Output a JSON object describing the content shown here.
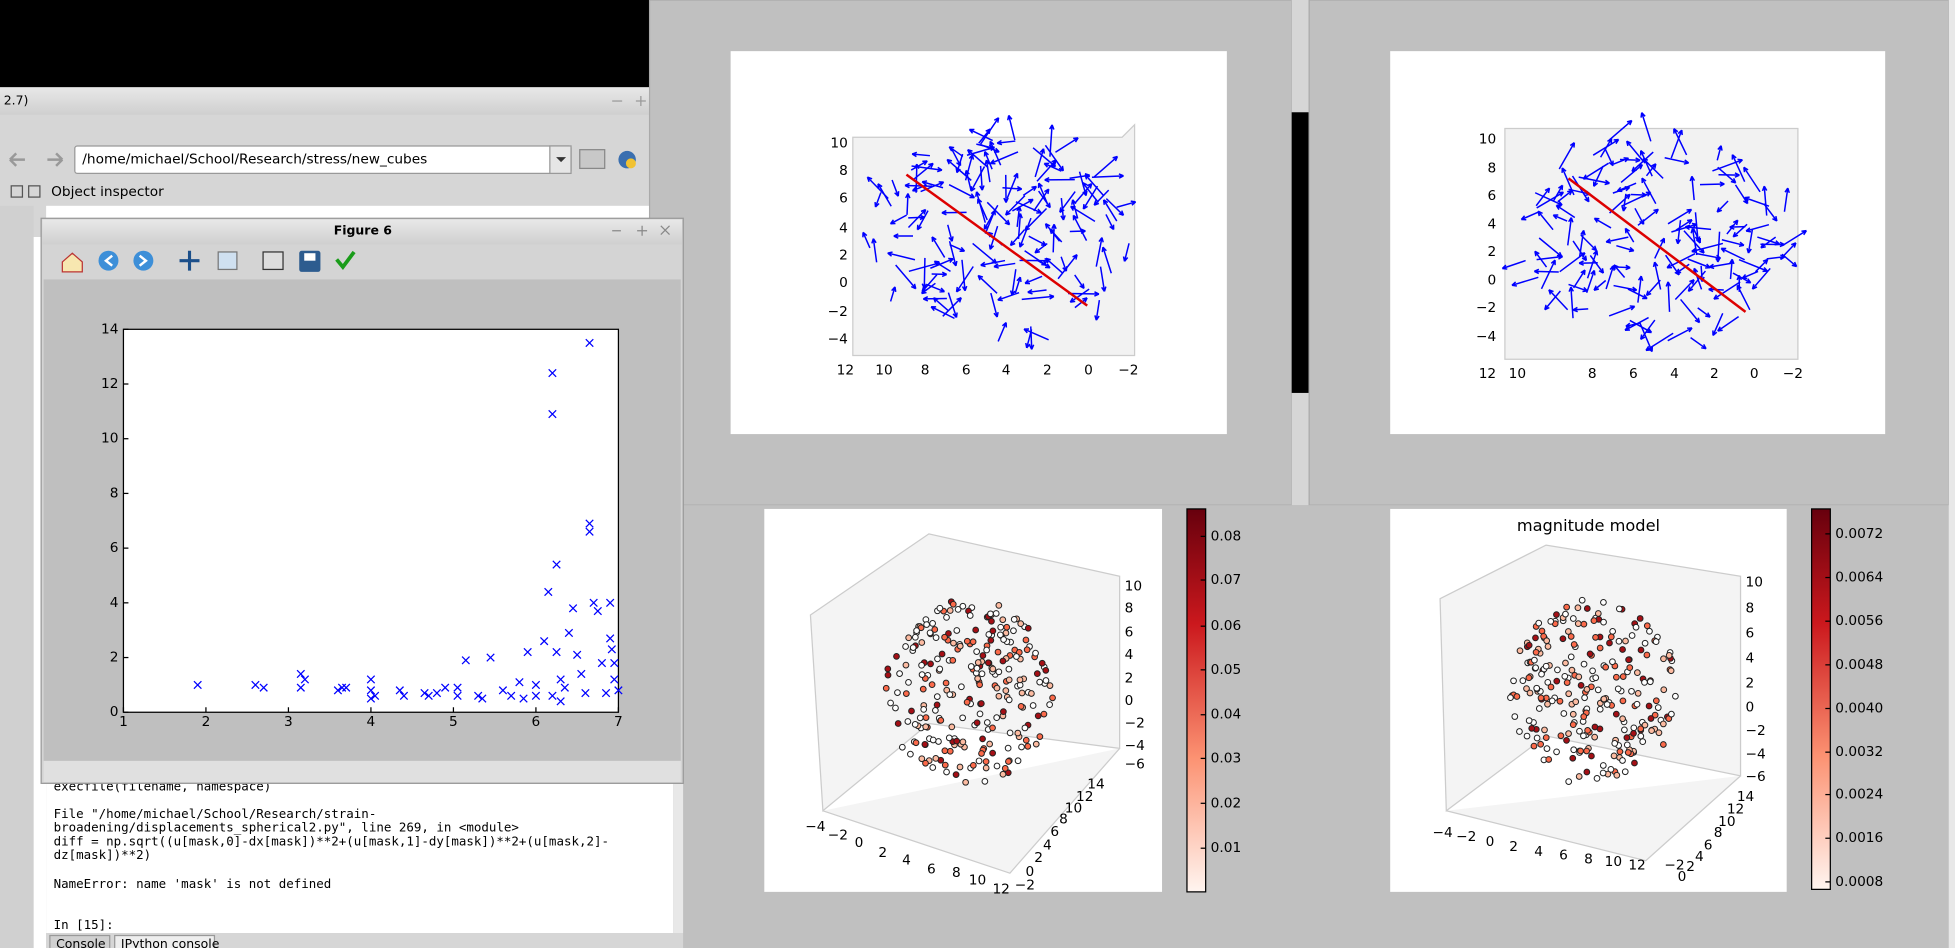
{
  "editor": {
    "title": "2.7)",
    "path": "/home/michael/School/Research/stress/new_cubes",
    "object_inspector": "Object inspector"
  },
  "console": {
    "lines": [
      "    execfile(filename, namespace)",
      "  File \"/home/michael/School/Research/strain-",
      "broadening/displacements_spherical2.py\", line 269, in <module>",
      "    diff = np.sqrt((u[mask,0]-dx[mask])**2+(u[mask,1]-dy[mask])**2+(u[mask,2]-",
      "dz[mask])**2)",
      "NameError: name 'mask' is not defined"
    ],
    "prompt": "In [15]:",
    "tabs": [
      "Console",
      "IPython console"
    ]
  },
  "figure6": {
    "title": "Figure 6",
    "chart_data": {
      "type": "scatter",
      "marker": "x",
      "color": "#0000ff",
      "x": [
        1.9,
        2.6,
        2.7,
        3.15,
        3.15,
        3.2,
        3.6,
        3.65,
        3.7,
        4.0,
        4.0,
        4.05,
        4.0,
        4.35,
        4.4,
        4.65,
        4.7,
        4.8,
        4.9,
        5.05,
        5.05,
        5.3,
        5.35,
        5.45,
        5.6,
        5.7,
        5.8,
        5.85,
        5.9,
        6.0,
        6.0,
        6.15,
        6.2,
        6.2,
        6.2,
        6.25,
        6.3,
        6.35,
        6.4,
        6.45,
        6.5,
        6.55,
        6.6,
        6.65,
        6.65,
        6.65,
        6.7,
        6.75,
        6.8,
        6.85,
        6.9,
        6.9,
        6.92,
        6.95,
        6.95,
        7.0,
        6.1,
        6.25,
        6.3,
        5.15
      ],
      "values": [
        1.0,
        1.0,
        0.9,
        1.4,
        0.9,
        1.2,
        0.8,
        0.9,
        0.9,
        1.2,
        0.8,
        0.6,
        0.5,
        0.8,
        0.6,
        0.7,
        0.6,
        0.7,
        0.9,
        0.9,
        0.6,
        0.6,
        0.5,
        2.0,
        0.8,
        0.6,
        1.1,
        0.5,
        2.2,
        1.0,
        0.6,
        4.4,
        0.6,
        12.4,
        10.9,
        5.4,
        1.2,
        0.9,
        2.9,
        3.8,
        2.1,
        1.4,
        0.7,
        13.5,
        6.9,
        6.6,
        4.0,
        3.7,
        1.8,
        0.7,
        4.0,
        2.7,
        2.3,
        1.8,
        1.2,
        0.8,
        2.6,
        2.2,
        0.4,
        1.9
      ],
      "xlim": [
        1,
        7
      ],
      "ylim": [
        0,
        14
      ],
      "xticks": [
        1,
        2,
        3,
        4,
        5,
        6,
        7
      ],
      "yticks": [
        0,
        2,
        4,
        6,
        8,
        10,
        12,
        14
      ]
    }
  },
  "quiver_left": {
    "xticks": [
      "12",
      "10",
      "8",
      "6",
      "4",
      "2",
      "0",
      "−2"
    ],
    "yticks": [
      "10",
      "8",
      "6",
      "4",
      "2",
      "0",
      "−2",
      "−4"
    ]
  },
  "quiver_right": {
    "xticks": [
      "12",
      "10",
      "8",
      "6",
      "4",
      "2",
      "0",
      "−2"
    ],
    "yticks": [
      "10",
      "8",
      "6",
      "4",
      "2",
      "0",
      "−2",
      "−4"
    ]
  },
  "scatter3d_left": {
    "xticks": [
      "−4",
      "−2",
      "0",
      "2",
      "4",
      "6",
      "8",
      "10",
      "12"
    ],
    "yticks": [
      "14",
      "12",
      "10",
      "8",
      "6",
      "4",
      "2",
      "0",
      "−2"
    ],
    "zticks": [
      "10",
      "8",
      "6",
      "4",
      "2",
      "0",
      "−2",
      "−4",
      "−6"
    ],
    "colorbar_ticks": [
      "0.08",
      "0.07",
      "0.06",
      "0.05",
      "0.04",
      "0.03",
      "0.02",
      "0.01"
    ]
  },
  "scatter3d_right": {
    "title": "magnitude model",
    "xticks": [
      "−4",
      "−2",
      "0",
      "2",
      "4",
      "6",
      "8",
      "10",
      "12"
    ],
    "yticks": [
      "14",
      "12",
      "10",
      "8",
      "6",
      "4",
      "2",
      "0",
      "−2"
    ],
    "zticks": [
      "10",
      "8",
      "6",
      "4",
      "2",
      "0",
      "−2",
      "−4",
      "−6"
    ],
    "colorbar_ticks": [
      "0.0072",
      "0.0064",
      "0.0056",
      "0.0048",
      "0.0040",
      "0.0032",
      "0.0024",
      "0.0016",
      "0.0008"
    ]
  }
}
